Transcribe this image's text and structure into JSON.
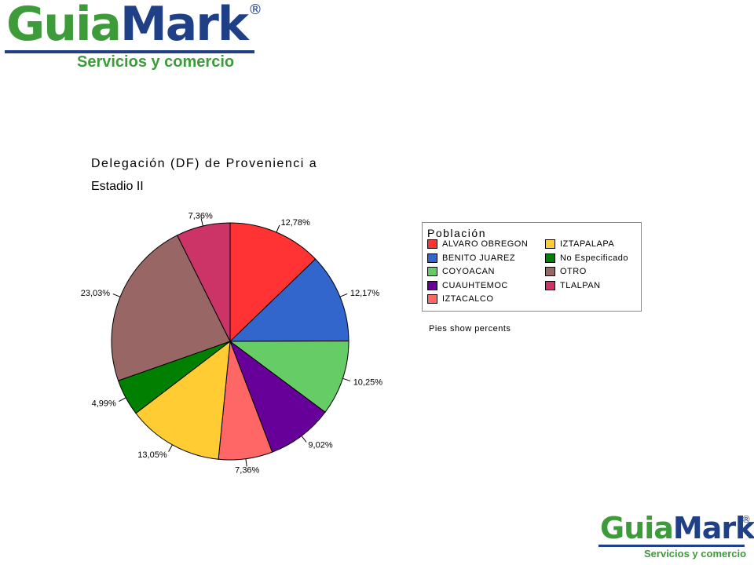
{
  "branding": {
    "logo_part1": "Guia",
    "logo_part2": "Mark",
    "registered": "®",
    "tagline": "Servicios y comercio"
  },
  "colors": {
    "brand_green": "#3d9b3a",
    "brand_blue": "#1f3f86"
  },
  "chart_data": {
    "type": "pie",
    "title": "Delegación (DF) de Provenienci a",
    "subtitle": "Estadio II",
    "legend_title": "Población",
    "legend_position": "right",
    "note": "Pies show percents",
    "slices": [
      {
        "label": "ALVARO OBREGON",
        "value": 12.78,
        "display": "12,78%",
        "color": "#ff3333"
      },
      {
        "label": "BENITO JUAREZ",
        "value": 12.17,
        "display": "12,17%",
        "color": "#3366cc"
      },
      {
        "label": "COYOACAN",
        "value": 10.25,
        "display": "10,25%",
        "color": "#66cc66"
      },
      {
        "label": "CUAUHTEMOC",
        "value": 9.02,
        "display": "9,02%",
        "color": "#660099"
      },
      {
        "label": "IZTACALCO",
        "value": 7.36,
        "display": "7,36%",
        "color": "#ff6666"
      },
      {
        "label": "IZTAPALAPA",
        "value": 13.05,
        "display": "13,05%",
        "color": "#ffcc33"
      },
      {
        "label": "No Especificado",
        "value": 4.99,
        "display": "4,99%",
        "color": "#007f00"
      },
      {
        "label": "OTRO",
        "value": 23.03,
        "display": "23,03%",
        "color": "#996666"
      },
      {
        "label": "TLALPAN",
        "value": 7.36,
        "display": "7,36%",
        "color": "#cc3366"
      }
    ]
  }
}
